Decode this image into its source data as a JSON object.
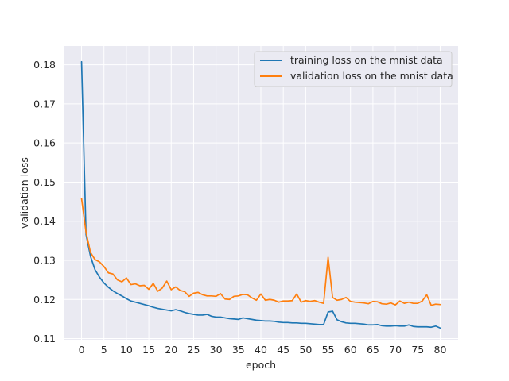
{
  "chart_data": {
    "type": "line",
    "title": "",
    "xlabel": "epoch",
    "ylabel": "validation loss",
    "xlim": [
      -4,
      84
    ],
    "ylim": [
      0.1097,
      0.1848
    ],
    "xticks": [
      0,
      5,
      10,
      15,
      20,
      25,
      30,
      35,
      40,
      45,
      50,
      55,
      60,
      65,
      70,
      75,
      80
    ],
    "yticks": [
      0.11,
      0.12,
      0.13,
      0.14,
      0.15,
      0.16,
      0.17,
      0.18
    ],
    "ytick_labels": [
      "0.11",
      "0.12",
      "0.13",
      "0.14",
      "0.15",
      "0.16",
      "0.17",
      "0.18"
    ],
    "grid": true,
    "legend_position": "top-right",
    "series": [
      {
        "name": "training loss on the mnist data",
        "color": "#1f77b4",
        "x": [
          0,
          1,
          2,
          3,
          4,
          5,
          6,
          7,
          8,
          9,
          10,
          11,
          12,
          13,
          14,
          15,
          16,
          17,
          18,
          19,
          20,
          21,
          22,
          23,
          24,
          25,
          26,
          27,
          28,
          29,
          30,
          31,
          32,
          33,
          34,
          35,
          36,
          37,
          38,
          39,
          40,
          41,
          42,
          43,
          44,
          45,
          46,
          47,
          48,
          49,
          50,
          51,
          52,
          53,
          54,
          55,
          56,
          57,
          58,
          59,
          60,
          61,
          62,
          63,
          64,
          65,
          66,
          67,
          68,
          69,
          70,
          71,
          72,
          73,
          74,
          75,
          76,
          77,
          78,
          79,
          80
        ],
        "values": [
          0.1808,
          0.1366,
          0.131,
          0.1276,
          0.1257,
          0.1242,
          0.1231,
          0.1222,
          0.1215,
          0.1209,
          0.1202,
          0.1196,
          0.1193,
          0.119,
          0.1187,
          0.1184,
          0.118,
          0.1177,
          0.1175,
          0.1173,
          0.1171,
          0.1174,
          0.1171,
          0.1167,
          0.1164,
          0.1162,
          0.116,
          0.116,
          0.1162,
          0.1157,
          0.1155,
          0.1155,
          0.1153,
          0.1151,
          0.115,
          0.1149,
          0.1153,
          0.1151,
          0.1149,
          0.1147,
          0.1146,
          0.1145,
          0.1145,
          0.1144,
          0.1142,
          0.1141,
          0.1141,
          0.114,
          0.114,
          0.1139,
          0.1139,
          0.1138,
          0.1137,
          0.1136,
          0.1136,
          0.1168,
          0.117,
          0.1148,
          0.1143,
          0.114,
          0.1139,
          0.1139,
          0.1138,
          0.1137,
          0.1135,
          0.1135,
          0.1136,
          0.1133,
          0.1132,
          0.1132,
          0.1133,
          0.1132,
          0.1132,
          0.1135,
          0.1131,
          0.113,
          0.113,
          0.113,
          0.1129,
          0.1132,
          0.1127
        ]
      },
      {
        "name": "validation loss on the mnist data",
        "color": "#ff7f0e",
        "x": [
          0,
          1,
          2,
          3,
          4,
          5,
          6,
          7,
          8,
          9,
          10,
          11,
          12,
          13,
          14,
          15,
          16,
          17,
          18,
          19,
          20,
          21,
          22,
          23,
          24,
          25,
          26,
          27,
          28,
          29,
          30,
          31,
          32,
          33,
          34,
          35,
          36,
          37,
          38,
          39,
          40,
          41,
          42,
          43,
          44,
          45,
          46,
          47,
          48,
          49,
          50,
          51,
          52,
          53,
          54,
          55,
          56,
          57,
          58,
          59,
          60,
          61,
          62,
          63,
          64,
          65,
          66,
          67,
          68,
          69,
          70,
          71,
          72,
          73,
          74,
          75,
          76,
          77,
          78,
          79,
          80
        ],
        "values": [
          0.1458,
          0.1372,
          0.132,
          0.1302,
          0.1296,
          0.1284,
          0.1268,
          0.1265,
          0.125,
          0.1245,
          0.1255,
          0.1238,
          0.124,
          0.1235,
          0.1236,
          0.1226,
          0.1241,
          0.1221,
          0.1229,
          0.1247,
          0.1225,
          0.1232,
          0.1223,
          0.122,
          0.1208,
          0.1216,
          0.1218,
          0.1212,
          0.1209,
          0.1209,
          0.1208,
          0.1215,
          0.1201,
          0.12,
          0.1208,
          0.1209,
          0.1213,
          0.1212,
          0.1204,
          0.1198,
          0.1214,
          0.1198,
          0.12,
          0.1198,
          0.1193,
          0.1196,
          0.1196,
          0.1197,
          0.1214,
          0.1193,
          0.1197,
          0.1195,
          0.1197,
          0.1193,
          0.119,
          0.1308,
          0.1205,
          0.1198,
          0.12,
          0.1205,
          0.1195,
          0.1193,
          0.1192,
          0.1191,
          0.1189,
          0.1195,
          0.1194,
          0.1189,
          0.1188,
          0.1191,
          0.1186,
          0.1196,
          0.119,
          0.1193,
          0.119,
          0.119,
          0.1196,
          0.1212,
          0.1185,
          0.1188,
          0.1187
        ]
      }
    ]
  }
}
